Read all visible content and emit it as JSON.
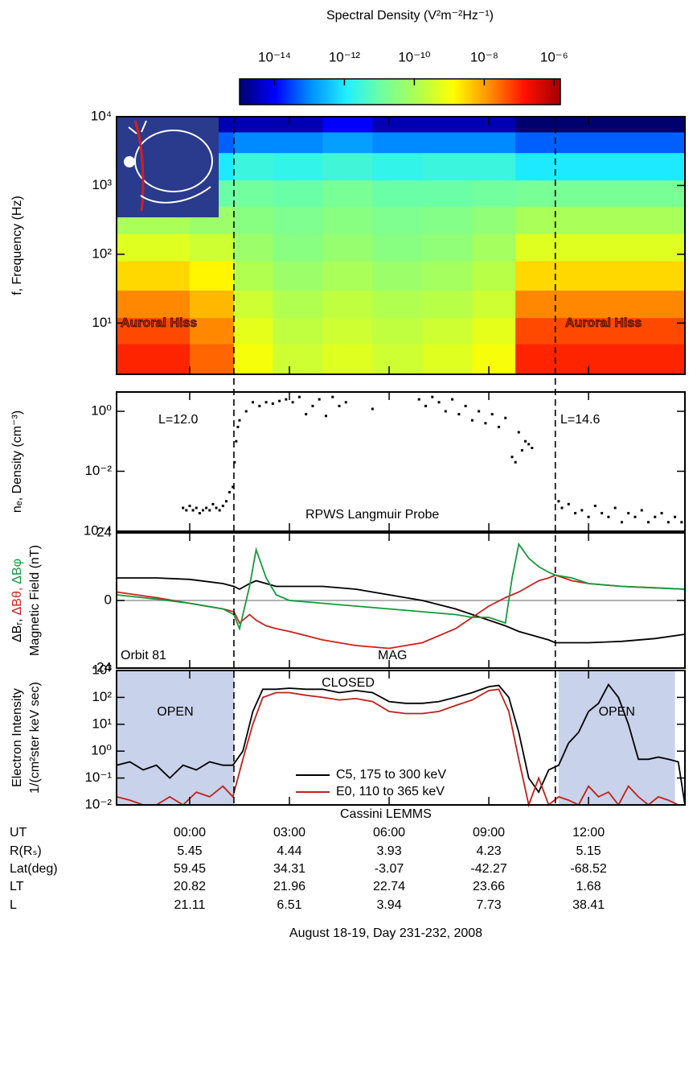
{
  "colorbar": {
    "title": "Spectral Density (V²m⁻²Hz⁻¹)",
    "clim": [
      1e-15,
      1.5e-06
    ],
    "ticks": [
      {
        "value": 1e-14,
        "label": "10⁻¹⁴"
      },
      {
        "value": 1e-12,
        "label": "10⁻¹²"
      },
      {
        "value": 1e-10,
        "label": "10⁻¹⁰"
      },
      {
        "value": 1e-08,
        "label": "10⁻⁸"
      },
      {
        "value": 1e-06,
        "label": "10⁻⁶"
      }
    ],
    "colormap": [
      "#00006f",
      "#0000ff",
      "#0090ff",
      "#20f0ff",
      "#70ffa0",
      "#b0ff50",
      "#ffff00",
      "#ff9000",
      "#ff1000",
      "#a00000"
    ]
  },
  "x_axis": {
    "xlim": [
      -2.2,
      14.9
    ],
    "xticks": [
      {
        "value": 0,
        "label": "00:00"
      },
      {
        "value": 3,
        "label": "03:00"
      },
      {
        "value": 6,
        "label": "06:00"
      },
      {
        "value": 9,
        "label": "09:00"
      },
      {
        "value": 12,
        "label": "12:00"
      }
    ],
    "label": "August 18-19, Day 231-232, 2008"
  },
  "boundaries": [
    1.33,
    11.0
  ],
  "chart_data": [
    {
      "type": "heatmap",
      "ylabel": [
        "f, Frequency (Hz)"
      ],
      "log_y": true,
      "ylim": [
        1.8,
        10000
      ],
      "yticks": [
        {
          "value": 10,
          "label": "10¹"
        },
        {
          "value": 100,
          "label": "10²"
        },
        {
          "value": 1000,
          "label": "10³"
        },
        {
          "value": 10000,
          "label": "10⁴"
        }
      ],
      "x_bins": [
        -2.2,
        -1,
        0,
        1.33,
        2.5,
        4,
        5.5,
        7,
        8.5,
        9.8,
        11,
        12.5,
        14.9
      ],
      "y_bins": [
        1.8,
        5,
        12,
        30,
        80,
        200,
        500,
        1200,
        3000,
        6000,
        10000
      ],
      "z": [
        [
          1e-07,
          1e-07,
          3e-08,
          1e-09,
          3e-10,
          5e-10,
          3e-10,
          5e-10,
          1e-09,
          1e-07,
          1e-07,
          1e-07
        ],
        [
          5e-08,
          5e-08,
          1.6e-08,
          6e-10,
          2e-10,
          3e-10,
          2e-10,
          3e-10,
          6e-10,
          5e-08,
          5e-08,
          5e-08
        ],
        [
          1.6e-08,
          1.6e-08,
          6e-09,
          3e-10,
          1.3e-10,
          2e-10,
          1.3e-10,
          1.6e-10,
          3e-10,
          1.6e-08,
          1.6e-08,
          1.6e-08
        ],
        [
          3e-09,
          3e-09,
          1.6e-09,
          1.3e-10,
          6e-11,
          1e-10,
          6e-11,
          8e-11,
          1.6e-10,
          3e-09,
          3e-09,
          3e-09
        ],
        [
          5e-10,
          5e-10,
          3e-10,
          6e-11,
          3e-11,
          5e-11,
          3e-11,
          4e-11,
          8e-11,
          5e-10,
          5e-10,
          5e-10
        ],
        [
          1e-10,
          1e-10,
          6e-11,
          3e-11,
          2e-11,
          3e-11,
          2e-11,
          2.5e-11,
          4e-11,
          1e-10,
          1e-10,
          1e-10
        ],
        [
          1.6e-11,
          1.6e-11,
          1e-11,
          1.3e-11,
          1e-11,
          1.6e-11,
          1e-11,
          1e-11,
          1.3e-11,
          1.6e-11,
          1.6e-11,
          1.6e-11
        ],
        [
          1e-12,
          1e-12,
          1e-12,
          2.5e-12,
          2e-12,
          3e-12,
          2e-12,
          2.5e-12,
          2.5e-12,
          1e-12,
          1e-12,
          1e-12
        ],
        [
          5e-14,
          5e-14,
          5e-14,
          1e-13,
          1e-13,
          1.6e-13,
          1e-13,
          1e-13,
          1e-13,
          5e-14,
          5e-14,
          5e-14
        ],
        [
          1e-15,
          1e-15,
          3e-15,
          3e-15,
          3e-15,
          1e-14,
          3e-15,
          3e-15,
          3e-15,
          1e-15,
          1e-15,
          1e-15
        ]
      ],
      "annotations": [
        "Auroral Hiss",
        "Auroral Hiss"
      ]
    },
    {
      "type": "scatter",
      "ylabel": [
        "nₑ, Density (cm⁻³)"
      ],
      "log_y": true,
      "ylim": [
        0.0001,
        4.4
      ],
      "yticks": [
        {
          "value": 0.0001,
          "label": "10⁻⁴"
        },
        {
          "value": 0.01,
          "label": "10⁻²"
        },
        {
          "value": 1,
          "label": "10⁰"
        }
      ],
      "series": [
        {
          "color": "#000000",
          "x": [
            -0.2,
            -0.1,
            0,
            0.1,
            0.2,
            0.3,
            0.4,
            0.5,
            0.6,
            0.7,
            0.8,
            0.9,
            1.0,
            1.1,
            1.2,
            1.3,
            1.35,
            1.4,
            1.45,
            1.5,
            1.7,
            1.9,
            2.1,
            2.3,
            2.5,
            2.7,
            2.9,
            3.1,
            3.3,
            3.5,
            3.7,
            3.9,
            4.1,
            4.3,
            4.5,
            4.7,
            5.5,
            6.9,
            7.1,
            7.3,
            7.5,
            7.7,
            7.9,
            8.1,
            8.3,
            8.5,
            8.7,
            8.9,
            9.1,
            9.3,
            9.5,
            9.7,
            9.8,
            9.9,
            10.0,
            10.1,
            10.2,
            10.3,
            11.1,
            11.2,
            11.4,
            11.6,
            11.8,
            12,
            12.2,
            12.4,
            12.6,
            12.8,
            13,
            13.2,
            13.4,
            13.6,
            13.8,
            14,
            14.2,
            14.4,
            14.6,
            14.8
          ],
          "values": [
            0.0006,
            0.0005,
            0.0007,
            0.0005,
            0.0006,
            0.0004,
            0.0005,
            0.0006,
            0.0005,
            0.0008,
            0.0006,
            0.0005,
            0.0007,
            0.001,
            0.002,
            0.003,
            0.02,
            0.1,
            0.3,
            0.5,
            1,
            2,
            1.5,
            2,
            1.8,
            2.2,
            2.5,
            2,
            3,
            0.8,
            1.5,
            2.5,
            0.7,
            3,
            1.5,
            2,
            1.2,
            2.5,
            1.5,
            3,
            2,
            1,
            2.5,
            0.8,
            1.5,
            0.5,
            1,
            0.4,
            0.8,
            0.3,
            0.6,
            0.03,
            0.02,
            0.2,
            0.05,
            0.1,
            0.08,
            0.06,
            0.001,
            0.0006,
            0.0008,
            0.0004,
            0.0005,
            0.0003,
            0.0007,
            0.0004,
            0.0003,
            0.0006,
            0.0002,
            0.0004,
            0.0003,
            0.0005,
            0.0002,
            0.0003,
            0.0004,
            0.0002,
            0.0003,
            0.0002
          ]
        }
      ],
      "annotations": [
        "L=12.0",
        "L=14.6",
        "RPWS Langmuir Probe"
      ]
    },
    {
      "type": "line",
      "ylabel": [
        "Magnetic Field (nT)"
      ],
      "ylim": [
        -24,
        24
      ],
      "yticks": [
        -24,
        0,
        24
      ],
      "zero_line": true,
      "x": [
        -2.2,
        -1,
        0,
        1,
        1.33,
        1.5,
        1.8,
        2,
        2.3,
        2.6,
        3,
        4,
        5,
        6,
        7,
        8,
        8.5,
        9,
        9.5,
        9.7,
        9.9,
        10.2,
        10.5,
        10.8,
        11,
        11.5,
        12,
        13,
        14,
        14.9
      ],
      "series": [
        {
          "name": "ΔBᵣ,",
          "color": "#000000",
          "values": [
            8,
            8,
            7.5,
            6,
            5,
            4,
            6,
            7,
            6,
            5,
            5,
            5,
            4,
            2,
            0,
            -3,
            -5,
            -7,
            -9,
            -10,
            -11,
            -12,
            -13,
            -14,
            -15,
            -15,
            -15,
            -14.5,
            -13.5,
            -12
          ]
        },
        {
          "name": "ΔBθ,",
          "color": "#d0201a",
          "values": [
            3,
            1,
            -1,
            -3,
            -4,
            -8,
            -5,
            -7,
            -9,
            -10,
            -11,
            -14,
            -16,
            -17,
            -15,
            -10,
            -6,
            -2,
            1,
            2,
            3,
            5,
            7,
            8,
            9,
            7,
            6,
            5,
            4.5,
            4
          ]
        },
        {
          "name": "ΔBφ",
          "color": "#139a3c",
          "values": [
            2,
            0.5,
            -1,
            -3,
            -5,
            -10,
            5,
            18,
            8,
            2,
            0,
            -1,
            -2,
            -3,
            -4,
            -5,
            -6,
            -6,
            -8,
            8,
            20,
            15,
            12,
            10,
            9,
            8,
            6,
            5,
            4.5,
            4
          ]
        }
      ],
      "annotations": [
        "Orbit 81",
        "MAG"
      ]
    },
    {
      "type": "line",
      "ylabel": [
        "Electron Intensity",
        "1/(cm²ster keV sec)"
      ],
      "log_y": true,
      "ylim": [
        0.01,
        1000
      ],
      "yticks": [
        {
          "value": 0.01,
          "label": "10⁻²"
        },
        {
          "value": 0.1,
          "label": "10⁻¹"
        },
        {
          "value": 1,
          "label": "10⁰"
        },
        {
          "value": 10,
          "label": "10¹"
        },
        {
          "value": 100,
          "label": "10²"
        },
        {
          "value": 1000,
          "label": "10³"
        }
      ],
      "x": [
        -2.2,
        -1.8,
        -1.4,
        -1,
        -0.6,
        -0.2,
        0.2,
        0.6,
        1,
        1.3,
        1.6,
        1.9,
        2.2,
        2.6,
        3,
        3.5,
        4,
        4.5,
        5,
        5.5,
        6,
        6.5,
        7,
        7.5,
        8,
        8.5,
        9,
        9.3,
        9.6,
        9.9,
        10.2,
        10.5,
        10.8,
        11.1,
        11.4,
        11.7,
        12,
        12.3,
        12.6,
        12.9,
        13.2,
        13.5,
        13.8,
        14.1,
        14.4,
        14.7,
        14.9
      ],
      "series": [
        {
          "name": "C5, 175 to 300 keV",
          "color": "#000000",
          "values": [
            0.3,
            0.4,
            0.2,
            0.3,
            0.1,
            0.3,
            0.2,
            0.4,
            0.3,
            0.3,
            1,
            30,
            200,
            200,
            220,
            200,
            200,
            150,
            180,
            150,
            70,
            60,
            60,
            70,
            100,
            150,
            250,
            280,
            100,
            5,
            0.1,
            0.03,
            0.2,
            0.3,
            2,
            5,
            30,
            60,
            300,
            100,
            10,
            0.5,
            0.5,
            0.6,
            0.5,
            0.4,
            0.01
          ]
        },
        {
          "name": "E0, 110 to 365 keV",
          "color": "#c0201a",
          "values": [
            0.02,
            0.015,
            0.01,
            0.01,
            0.02,
            0.01,
            0.03,
            0.02,
            0.05,
            0.02,
            0.5,
            10,
            100,
            150,
            150,
            120,
            100,
            80,
            90,
            70,
            30,
            25,
            25,
            30,
            50,
            80,
            180,
            200,
            30,
            0.5,
            0.01,
            0.1,
            0.01,
            0.02,
            0.015,
            0.01,
            0.05,
            0.02,
            0.03,
            0.01,
            0.05,
            0.02,
            0.01,
            0.02,
            0.015,
            0.01,
            0.01
          ]
        }
      ],
      "regions": [
        {
          "label": "OPEN",
          "x": [
            -2.2,
            1.33
          ]
        },
        {
          "label": "OPEN",
          "x": [
            11.1,
            14.6
          ]
        }
      ],
      "annotations": [
        "CLOSED",
        "Cassini LEMMS"
      ]
    }
  ],
  "ephemeris": {
    "ut_label": "UT",
    "rows": [
      {
        "label": "R(Rₛ)",
        "cells": [
          "5.45",
          "4.44",
          "3.93",
          "4.23",
          "5.15"
        ]
      },
      {
        "label": "Lat(deg)",
        "cells": [
          "59.45",
          "34.31",
          "-3.07",
          "-42.27",
          "-68.52"
        ]
      },
      {
        "label": "LT",
        "cells": [
          "20.82",
          "21.96",
          "22.74",
          "23.66",
          "1.68"
        ]
      },
      {
        "label": "L",
        "cells": [
          "21.11",
          "6.51",
          "3.94",
          "7.73",
          "38.41"
        ]
      }
    ]
  }
}
